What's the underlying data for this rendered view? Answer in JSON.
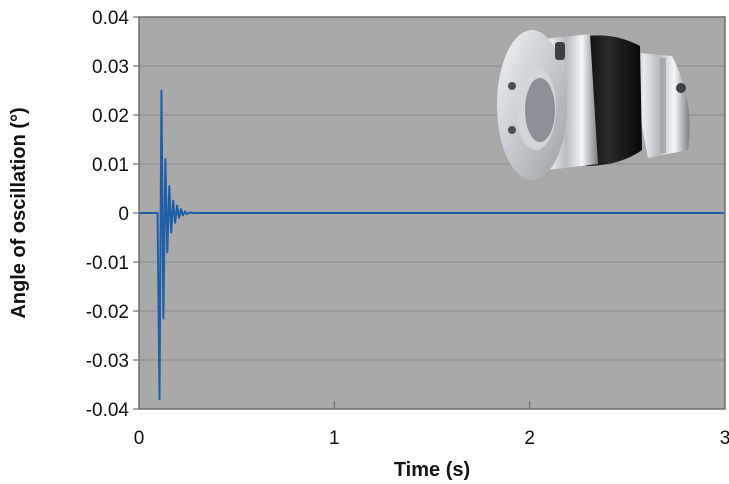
{
  "chart_data": {
    "type": "line",
    "title": "",
    "xlabel": "Time (s)",
    "ylabel": "Angle of oscillation (°)",
    "xlim": [
      0,
      3
    ],
    "ylim": [
      -0.04,
      0.04
    ],
    "x_ticks": [
      0,
      1,
      2,
      3
    ],
    "x_tick_labels": [
      "0",
      "1",
      "2",
      "3"
    ],
    "y_ticks": [
      0.04,
      0.03,
      0.02,
      0.01,
      0,
      -0.01,
      -0.02,
      -0.03,
      -0.04
    ],
    "y_tick_labels": [
      "0.04",
      "0.03",
      "0.02",
      "0.01",
      "0",
      "-0.01",
      "-0.02",
      "-0.03",
      "-0.04"
    ],
    "grid": true,
    "legend": "none",
    "colors": {
      "plot_background": "#a9a9a9",
      "line": "#1f5fa8",
      "grid": "#8c8c8c"
    },
    "series": [
      {
        "values_x": [
          0,
          0.08,
          0.095,
          0.105,
          0.115,
          0.125,
          0.135,
          0.145,
          0.155,
          0.165,
          0.175,
          0.185,
          0.195,
          0.205,
          0.215,
          0.225,
          0.235,
          0.245,
          0.26,
          0.28,
          0.3,
          3.0
        ],
        "values_y": [
          0,
          0,
          0.0,
          -0.038,
          0.025,
          -0.0215,
          0.011,
          -0.008,
          0.0055,
          -0.004,
          0.0025,
          -0.002,
          0.0015,
          -0.001,
          0.0008,
          -0.0005,
          0.0003,
          -0.0002,
          0.0001,
          0,
          0,
          0
        ]
      }
    ]
  },
  "product_image": {
    "icon": "coupling-photo"
  }
}
